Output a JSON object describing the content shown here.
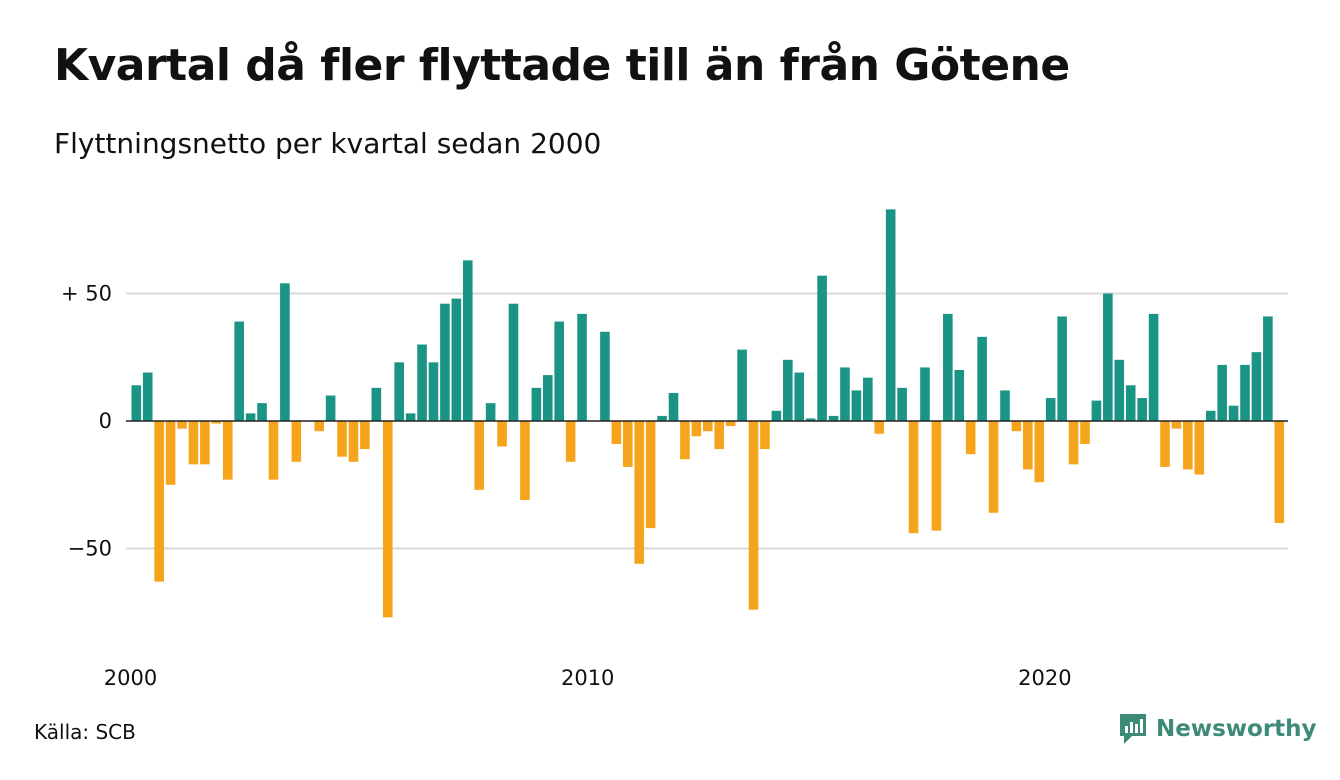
{
  "title": "Kvartal då fler flyttade till än från Götene",
  "subtitle": "Flyttningsnetto per kvartal sedan 2000",
  "source": "Källa: SCB",
  "brand": {
    "name": "Newsworthy",
    "icon": "newsworthy-logo-icon",
    "color": "#3d8b77"
  },
  "colors": {
    "positive": "#1a9484",
    "negative": "#f7a41d",
    "grid": "#d9d9d9",
    "zero_line": "#222222"
  },
  "chart_data": {
    "type": "bar",
    "title": "Kvartal då fler flyttade till än från Götene",
    "subtitle": "Flyttningsnetto per kvartal sedan 2000",
    "x_start": "2000 Q1",
    "x_tick_labels": [
      "2000",
      "2010",
      "2020"
    ],
    "y_tick_values": [
      50,
      0,
      -50
    ],
    "y_tick_labels": [
      "+ 50",
      "0",
      "−50"
    ],
    "ylim": [
      -85,
      85
    ],
    "grid": true,
    "values": [
      14,
      19,
      -63,
      -25,
      -3,
      -17,
      -17,
      -1,
      -23,
      39,
      3,
      7,
      -23,
      54,
      -16,
      0,
      -4,
      10,
      -14,
      -16,
      -11,
      13,
      -77,
      23,
      3,
      30,
      23,
      46,
      48,
      63,
      -27,
      7,
      -10,
      46,
      -31,
      13,
      18,
      39,
      -16,
      42,
      0,
      35,
      -9,
      -18,
      -56,
      -42,
      2,
      11,
      -15,
      -6,
      -4,
      -11,
      -2,
      28,
      -74,
      -11,
      4,
      24,
      19,
      1,
      57,
      2,
      21,
      12,
      17,
      -5,
      83,
      13,
      -44,
      21,
      -43,
      42,
      20,
      -13,
      33,
      -36,
      12,
      -4,
      -19,
      -24,
      9,
      41,
      -17,
      -9,
      8,
      50,
      24,
      14,
      9,
      42,
      -18,
      -3,
      -19,
      -21,
      4,
      22,
      6,
      22,
      27,
      41,
      -40
    ]
  }
}
